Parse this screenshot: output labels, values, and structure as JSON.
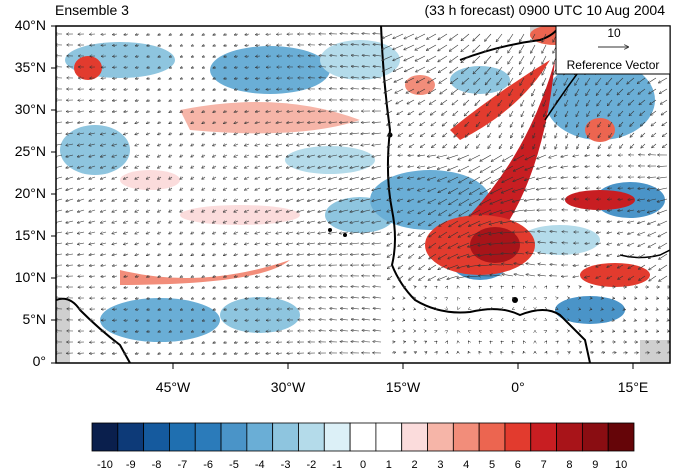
{
  "header": {
    "left_title": "Ensemble 3",
    "right_title": "(33 h forecast) 0900 UTC 10 Aug 2004"
  },
  "axes": {
    "lat_labels": [
      "40°N",
      "35°N",
      "30°N",
      "25°N",
      "20°N",
      "15°N",
      "10°N",
      "5°N",
      "0°"
    ],
    "lon_labels": [
      "45°W",
      "30°W",
      "15°W",
      "0°",
      "15°E"
    ]
  },
  "reference_vector": {
    "magnitude": "10",
    "label": "Reference Vector"
  },
  "colorbar": {
    "labels": [
      "-10",
      "-9",
      "-8",
      "-7",
      "-6",
      "-5",
      "-4",
      "-3",
      "-2",
      "-1",
      "0",
      "1",
      "2",
      "3",
      "4",
      "5",
      "6",
      "7",
      "8",
      "9",
      "10"
    ],
    "colors": [
      "#0a1f4d",
      "#0d3a78",
      "#155a9e",
      "#1f6fb0",
      "#2b7bba",
      "#4a94c8",
      "#6aaed6",
      "#8ec5df",
      "#b4dbea",
      "#dcf0f7",
      "#ffffff",
      "#ffffff",
      "#fbdcdc",
      "#f6b5a8",
      "#f28d7a",
      "#ec6550",
      "#e23b2e",
      "#c81e22",
      "#a81419",
      "#8a0d12",
      "#650508"
    ]
  }
}
